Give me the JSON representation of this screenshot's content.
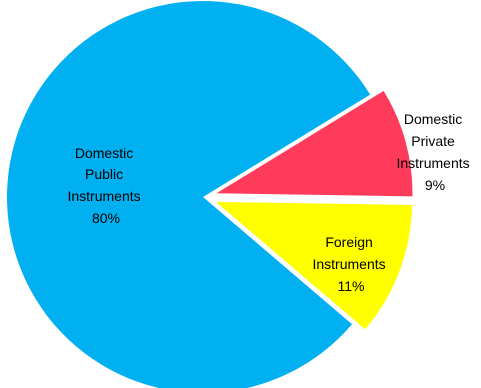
{
  "chart_data": {
    "type": "pie",
    "title": "",
    "legend": "none",
    "slices": [
      {
        "name": "Domestic Public Instruments",
        "label_lines": [
          "Domestic",
          "Public",
          "Instruments",
          "80%"
        ],
        "value": 80,
        "color": "#00B0F0"
      },
      {
        "name": "Domestic Private Instruments",
        "label_lines": [
          "Domestic",
          "Private",
          "Instruments",
          "9%"
        ],
        "value": 9,
        "color": "#FF3B5C"
      },
      {
        "name": "Foreign Instruments",
        "label_lines": [
          "Foreign",
          "Instruments",
          "11%"
        ],
        "value": 11,
        "color": "#FFFF00"
      }
    ]
  }
}
